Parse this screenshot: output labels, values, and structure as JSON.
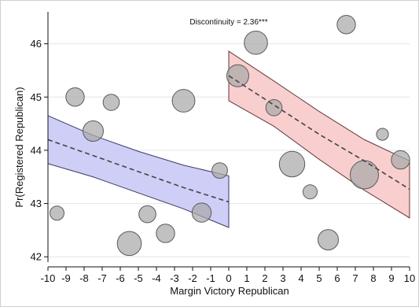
{
  "chart_data": {
    "type": "scatter",
    "title": "",
    "xlabel": "Margin Victory Republican",
    "ylabel": "Pr(Registered Republican)",
    "annotation": "Discontinuity = 2.36***",
    "xlim": [
      -10,
      10
    ],
    "ylim": [
      41.9,
      46.6
    ],
    "x_ticks": [
      -10,
      -9,
      -8,
      -7,
      -6,
      -5,
      -4,
      -3,
      -2,
      -1,
      0,
      1,
      2,
      3,
      4,
      5,
      6,
      7,
      8,
      9,
      10
    ],
    "y_ticks": [
      42,
      43,
      44,
      45,
      46
    ],
    "grid": "horizontal",
    "colors": {
      "points_fill": "#a9a9a9",
      "points_stroke": "#5a5a5a",
      "left_band_fill": "#c9c9f5",
      "left_band_stroke": "#3a3a66",
      "right_band_fill": "#f7c9c9",
      "right_band_stroke": "#663a3a",
      "fit_line": "#444444",
      "grid": "#e6e6e6",
      "axis": "#111111"
    },
    "points": [
      {
        "x": -9.5,
        "y": 42.82,
        "size": 1.0
      },
      {
        "x": -8.5,
        "y": 45.0,
        "size": 1.3
      },
      {
        "x": -7.5,
        "y": 44.36,
        "size": 1.45
      },
      {
        "x": -6.5,
        "y": 44.9,
        "size": 1.15
      },
      {
        "x": -5.5,
        "y": 42.25,
        "size": 1.7
      },
      {
        "x": -4.5,
        "y": 42.8,
        "size": 1.2
      },
      {
        "x": -3.5,
        "y": 42.44,
        "size": 1.3
      },
      {
        "x": -2.5,
        "y": 44.93,
        "size": 1.6
      },
      {
        "x": -1.5,
        "y": 42.83,
        "size": 1.35
      },
      {
        "x": -0.5,
        "y": 43.62,
        "size": 1.1
      },
      {
        "x": 0.5,
        "y": 45.4,
        "size": 1.55
      },
      {
        "x": 1.5,
        "y": 46.02,
        "size": 1.65
      },
      {
        "x": 2.5,
        "y": 44.8,
        "size": 1.15
      },
      {
        "x": 3.5,
        "y": 43.74,
        "size": 1.8
      },
      {
        "x": 4.5,
        "y": 43.22,
        "size": 1.0
      },
      {
        "x": 5.5,
        "y": 42.32,
        "size": 1.45
      },
      {
        "x": 6.5,
        "y": 46.36,
        "size": 1.3
      },
      {
        "x": 7.5,
        "y": 43.54,
        "size": 2.0
      },
      {
        "x": 8.5,
        "y": 44.3,
        "size": 0.85
      },
      {
        "x": 9.5,
        "y": 43.82,
        "size": 1.3
      }
    ],
    "fits": [
      {
        "side": "left",
        "x": [
          -10,
          -7.5,
          -5,
          -2.5,
          0
        ],
        "y": [
          44.2,
          43.9,
          43.6,
          43.3,
          43.03
        ],
        "lower": [
          43.75,
          43.5,
          43.2,
          42.9,
          42.55
        ],
        "upper": [
          44.65,
          44.28,
          43.98,
          43.72,
          43.52
        ]
      },
      {
        "side": "right",
        "x": [
          0,
          2.5,
          5,
          7.5,
          10
        ],
        "y": [
          45.4,
          44.85,
          44.3,
          43.8,
          43.27
        ],
        "lower": [
          44.93,
          44.45,
          43.83,
          43.25,
          42.73
        ],
        "upper": [
          45.86,
          45.3,
          44.73,
          44.2,
          43.8
        ]
      }
    ]
  }
}
